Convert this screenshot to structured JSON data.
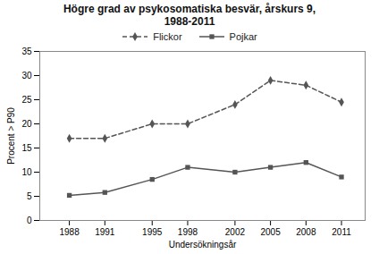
{
  "chart_data": {
    "type": "line",
    "title": "Högre grad av psykosomatiska besvär, årskurs 9,\n1988-2011",
    "x_label": "Undersökningsår",
    "y_label": "Procent > P90",
    "x": [
      1988,
      1991,
      1995,
      1998,
      2002,
      2005,
      2008,
      2011
    ],
    "series": [
      {
        "name": "Flickor",
        "color": "#555555",
        "line_style": "dashed",
        "marker": "diamond",
        "values": [
          17,
          17,
          20,
          20,
          24,
          29,
          28,
          24.5
        ]
      },
      {
        "name": "Pojkar",
        "color": "#555555",
        "line_style": "solid",
        "marker": "square",
        "values": [
          5.2,
          5.8,
          8.5,
          11,
          10,
          11,
          12,
          9
        ]
      }
    ],
    "xlim": [
      1985.5,
      2013
    ],
    "xticks": [
      1988,
      1991,
      1995,
      1998,
      2002,
      2005,
      2008,
      2011
    ],
    "ylim": [
      0,
      35
    ],
    "yticks": [
      0,
      5,
      10,
      15,
      20,
      25,
      30,
      35
    ],
    "grid": false,
    "legend": "top"
  }
}
